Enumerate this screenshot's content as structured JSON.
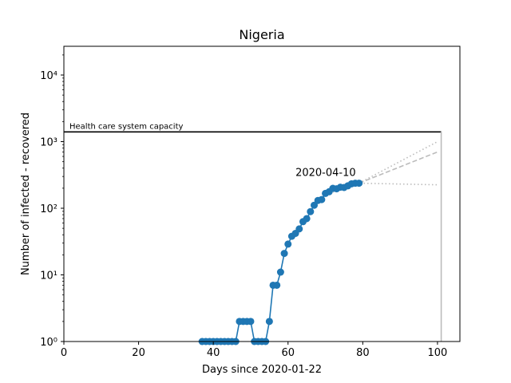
{
  "chart_data": {
    "type": "line",
    "title": "Nigeria",
    "xlabel": "Days since 2020-01-22",
    "ylabel": "Number of infected - recovered",
    "xlim": [
      0,
      106
    ],
    "ylim": [
      1,
      27000
    ],
    "yscale": "log",
    "grid": false,
    "x_ticks": [
      0,
      20,
      40,
      60,
      80,
      100
    ],
    "x_tick_labels": [
      "0",
      "20",
      "40",
      "60",
      "80",
      "100"
    ],
    "y_ticks": [
      1,
      10,
      100,
      1000,
      10000
    ],
    "y_tick_labels": [
      "10⁰",
      "10¹",
      "10²",
      "10³",
      "10⁴"
    ],
    "capacity": {
      "value": 1400,
      "x_start": 0,
      "x_end": 101,
      "label": "Health care system capacity"
    },
    "series": [
      {
        "type": "line+markers",
        "color": "#1f77b4",
        "x": [
          37,
          38,
          39,
          40,
          41,
          42,
          43,
          44,
          45,
          46,
          47,
          48,
          49,
          50,
          51,
          52,
          53,
          54,
          55,
          56,
          57,
          58,
          59,
          60,
          61,
          62,
          63,
          64,
          65,
          66,
          67,
          68,
          69,
          70,
          71,
          72,
          73,
          74,
          75,
          76,
          77,
          78,
          79
        ],
        "y": [
          1,
          1,
          1,
          1,
          1,
          1,
          1,
          1,
          1,
          1,
          2,
          2,
          2,
          2,
          1,
          1,
          1,
          1,
          2,
          7,
          7,
          11,
          21,
          29,
          38,
          42,
          49,
          63,
          70,
          89,
          111,
          131,
          135,
          167,
          177,
          199,
          196,
          207,
          205,
          217,
          233,
          238,
          238
        ]
      },
      {
        "type": "projection",
        "style": "dotted",
        "color": "#bbbbbb",
        "x": [
          79,
          100
        ],
        "y": [
          238,
          1000
        ]
      },
      {
        "type": "projection",
        "style": "dashed",
        "color": "#bbbbbb",
        "x": [
          79,
          100
        ],
        "y": [
          238,
          700
        ]
      },
      {
        "type": "projection",
        "style": "dotted",
        "color": "#bbbbbb",
        "x": [
          72,
          79,
          100
        ],
        "y": [
          175,
          238,
          225
        ]
      }
    ],
    "vline": {
      "x": 101,
      "y_from": 1,
      "y_to": 1400,
      "color": "#bbbbbb"
    },
    "annotation": {
      "text": "2020-04-10",
      "x": 79,
      "y": 238
    }
  }
}
